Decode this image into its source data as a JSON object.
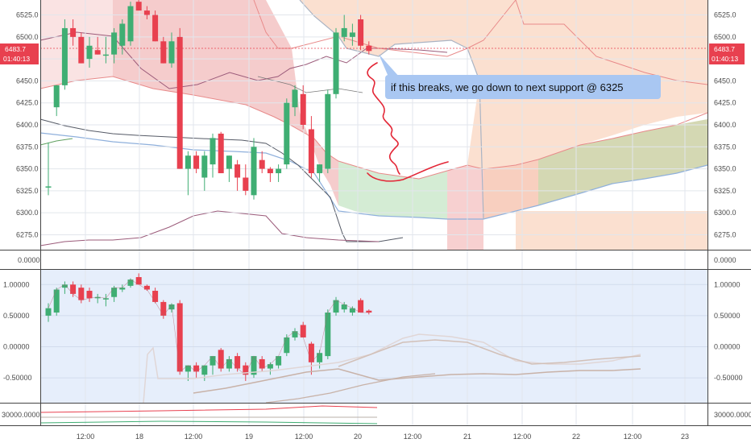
{
  "price_labels": {
    "last_price": "6483.7",
    "countdown": "01:40:13"
  },
  "annotation": {
    "text": "if this breaks, we go down to next support @ 6325"
  },
  "colors": {
    "up": "#3fae73",
    "down": "#e8404f",
    "cloud_bear": "#f5c4c4",
    "cloud_bull": "#cfe9cf",
    "cloud_bull_dark": "#c8cfa8",
    "panel_bg": "#e6eefb",
    "tag": "#e8404f",
    "callout": "#a9c7f2",
    "drawing": "#e32636"
  },
  "chart_data": [
    {
      "type": "candlestick",
      "panel": "price",
      "y_ticks": [
        "6525.0",
        "6500.0",
        "6475.0",
        "6450.0",
        "6425.0",
        "6400.0",
        "6375.0",
        "6350.0",
        "6325.0",
        "6300.0",
        "6275.0"
      ],
      "ylim": [
        6258,
        6542
      ],
      "x_ticks": [
        "12:00",
        "18",
        "12:00",
        "19",
        "12:00",
        "20",
        "12:00",
        "21",
        "12:00",
        "22",
        "12:00",
        "23"
      ],
      "candles": [
        {
          "o": 6330,
          "h": 6380,
          "l": 6320,
          "c": 6330
        },
        {
          "o": 6420,
          "h": 6445,
          "l": 6410,
          "c": 6445
        },
        {
          "o": 6445,
          "h": 6520,
          "l": 6440,
          "c": 6510
        },
        {
          "o": 6510,
          "h": 6520,
          "l": 6490,
          "c": 6500
        },
        {
          "o": 6500,
          "h": 6505,
          "l": 6470,
          "c": 6470
        },
        {
          "o": 6475,
          "h": 6500,
          "l": 6465,
          "c": 6490
        },
        {
          "o": 6485,
          "h": 6500,
          "l": 6480,
          "c": 6480
        },
        {
          "o": 6480,
          "h": 6500,
          "l": 6470,
          "c": 6480
        },
        {
          "o": 6480,
          "h": 6510,
          "l": 6470,
          "c": 6505
        },
        {
          "o": 6490,
          "h": 6520,
          "l": 6480,
          "c": 6515
        },
        {
          "o": 6495,
          "h": 6540,
          "l": 6490,
          "c": 6535
        },
        {
          "o": 6540,
          "h": 6548,
          "l": 6530,
          "c": 6530
        },
        {
          "o": 6530,
          "h": 6535,
          "l": 6520,
          "c": 6525
        },
        {
          "o": 6525,
          "h": 6530,
          "l": 6495,
          "c": 6495
        },
        {
          "o": 6495,
          "h": 6500,
          "l": 6470,
          "c": 6470
        },
        {
          "o": 6470,
          "h": 6505,
          "l": 6465,
          "c": 6495
        },
        {
          "o": 6500,
          "h": 6510,
          "l": 6350,
          "c": 6350
        },
        {
          "o": 6350,
          "h": 6370,
          "l": 6320,
          "c": 6365
        },
        {
          "o": 6365,
          "h": 6370,
          "l": 6345,
          "c": 6350
        },
        {
          "o": 6340,
          "h": 6370,
          "l": 6325,
          "c": 6365
        },
        {
          "o": 6355,
          "h": 6390,
          "l": 6340,
          "c": 6385
        },
        {
          "o": 6390,
          "h": 6392,
          "l": 6345,
          "c": 6345
        },
        {
          "o": 6350,
          "h": 6365,
          "l": 6335,
          "c": 6365
        },
        {
          "o": 6355,
          "h": 6360,
          "l": 6325,
          "c": 6340
        },
        {
          "o": 6340,
          "h": 6355,
          "l": 6320,
          "c": 6325
        },
        {
          "o": 6320,
          "h": 6385,
          "l": 6315,
          "c": 6375
        },
        {
          "o": 6360,
          "h": 6370,
          "l": 6345,
          "c": 6350
        },
        {
          "o": 6350,
          "h": 6352,
          "l": 6335,
          "c": 6345
        },
        {
          "o": 6345,
          "h": 6355,
          "l": 6335,
          "c": 6350
        },
        {
          "o": 6355,
          "h": 6430,
          "l": 6350,
          "c": 6425
        },
        {
          "o": 6420,
          "h": 6445,
          "l": 6410,
          "c": 6440
        },
        {
          "o": 6435,
          "h": 6445,
          "l": 6395,
          "c": 6400
        },
        {
          "o": 6395,
          "h": 6410,
          "l": 6340,
          "c": 6345
        },
        {
          "o": 6345,
          "h": 6355,
          "l": 6335,
          "c": 6355
        },
        {
          "o": 6350,
          "h": 6440,
          "l": 6345,
          "c": 6435
        },
        {
          "o": 6435,
          "h": 6510,
          "l": 6430,
          "c": 6505
        },
        {
          "o": 6500,
          "h": 6525,
          "l": 6495,
          "c": 6510
        },
        {
          "o": 6500,
          "h": 6515,
          "l": 6490,
          "c": 6505
        },
        {
          "o": 6520,
          "h": 6525,
          "l": 6485,
          "c": 6490
        },
        {
          "o": 6490,
          "h": 6495,
          "l": 6480,
          "c": 6484
        }
      ]
    },
    {
      "type": "line",
      "panel": "separator",
      "y_ticks": [
        "0.0000"
      ]
    },
    {
      "type": "candlestick",
      "panel": "oscillator",
      "y_ticks": [
        "1.00000",
        "0.50000",
        "0.00000",
        "-0.50000"
      ],
      "ylim": [
        -0.9,
        1.25
      ],
      "candles": [
        {
          "o": 0.5,
          "h": 0.7,
          "l": 0.4,
          "c": 0.62
        },
        {
          "o": 0.55,
          "h": 0.95,
          "l": 0.5,
          "c": 0.92
        },
        {
          "o": 0.95,
          "h": 1.05,
          "l": 0.85,
          "c": 1.0
        },
        {
          "o": 1.0,
          "h": 1.05,
          "l": 0.8,
          "c": 0.85
        },
        {
          "o": 0.95,
          "h": 1.0,
          "l": 0.7,
          "c": 0.75
        },
        {
          "o": 0.9,
          "h": 0.95,
          "l": 0.72,
          "c": 0.78
        },
        {
          "o": 0.78,
          "h": 0.85,
          "l": 0.7,
          "c": 0.8
        },
        {
          "o": 0.78,
          "h": 0.85,
          "l": 0.65,
          "c": 0.78
        },
        {
          "o": 0.8,
          "h": 0.98,
          "l": 0.72,
          "c": 0.95
        },
        {
          "o": 0.92,
          "h": 1.0,
          "l": 0.88,
          "c": 0.95
        },
        {
          "o": 0.98,
          "h": 1.1,
          "l": 0.95,
          "c": 1.08
        },
        {
          "o": 1.12,
          "h": 1.18,
          "l": 1.0,
          "c": 1.0
        },
        {
          "o": 0.98,
          "h": 1.0,
          "l": 0.9,
          "c": 0.92
        },
        {
          "o": 0.9,
          "h": 0.95,
          "l": 0.7,
          "c": 0.72
        },
        {
          "o": 0.72,
          "h": 0.75,
          "l": 0.45,
          "c": 0.5
        },
        {
          "o": 0.6,
          "h": 0.7,
          "l": 0.55,
          "c": 0.68
        },
        {
          "o": 0.7,
          "h": 0.75,
          "l": -0.45,
          "c": -0.4
        },
        {
          "o": -0.4,
          "h": -0.3,
          "l": -0.55,
          "c": -0.3
        },
        {
          "o": -0.3,
          "h": -0.25,
          "l": -0.5,
          "c": -0.4
        },
        {
          "o": -0.45,
          "h": -0.3,
          "l": -0.55,
          "c": -0.3
        },
        {
          "o": -0.3,
          "h": -0.15,
          "l": -0.45,
          "c": -0.15
        },
        {
          "o": -0.05,
          "h": -0.02,
          "l": -0.4,
          "c": -0.35
        },
        {
          "o": -0.35,
          "h": -0.15,
          "l": -0.4,
          "c": -0.2
        },
        {
          "o": -0.15,
          "h": -0.1,
          "l": -0.4,
          "c": -0.35
        },
        {
          "o": -0.3,
          "h": -0.25,
          "l": -0.55,
          "c": -0.45
        },
        {
          "o": -0.45,
          "h": -0.15,
          "l": -0.5,
          "c": -0.15
        },
        {
          "o": -0.2,
          "h": -0.15,
          "l": -0.4,
          "c": -0.35
        },
        {
          "o": -0.35,
          "h": -0.25,
          "l": -0.45,
          "c": -0.28
        },
        {
          "o": -0.3,
          "h": -0.15,
          "l": -0.35,
          "c": -0.15
        },
        {
          "o": -0.1,
          "h": 0.2,
          "l": -0.15,
          "c": 0.15
        },
        {
          "o": 0.15,
          "h": 0.3,
          "l": 0.1,
          "c": 0.25
        },
        {
          "o": 0.35,
          "h": 0.4,
          "l": 0.15,
          "c": 0.15
        },
        {
          "o": 0.05,
          "h": 0.08,
          "l": -0.45,
          "c": -0.25
        },
        {
          "o": -0.25,
          "h": -0.05,
          "l": -0.35,
          "c": -0.1
        },
        {
          "o": -0.15,
          "h": 0.6,
          "l": -0.2,
          "c": 0.55
        },
        {
          "o": 0.55,
          "h": 0.8,
          "l": 0.5,
          "c": 0.75
        },
        {
          "o": 0.6,
          "h": 0.72,
          "l": 0.55,
          "c": 0.68
        },
        {
          "o": 0.55,
          "h": 0.65,
          "l": 0.5,
          "c": 0.62
        },
        {
          "o": 0.75,
          "h": 0.78,
          "l": 0.55,
          "c": 0.55
        },
        {
          "o": 0.58,
          "h": 0.6,
          "l": 0.52,
          "c": 0.55
        }
      ]
    },
    {
      "type": "line",
      "panel": "volume",
      "y_ticks": [
        "30000.0000"
      ]
    }
  ]
}
